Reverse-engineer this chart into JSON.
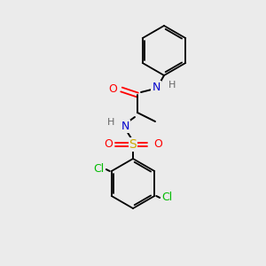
{
  "background_color": "#ebebeb",
  "bond_color": "#000000",
  "atom_colors": {
    "N": "#0000cc",
    "O": "#ff0000",
    "S": "#ccaa00",
    "Cl": "#00bb00",
    "C": "#000000",
    "H": "#666666"
  },
  "figsize": [
    3.0,
    3.0
  ],
  "dpi": 100
}
